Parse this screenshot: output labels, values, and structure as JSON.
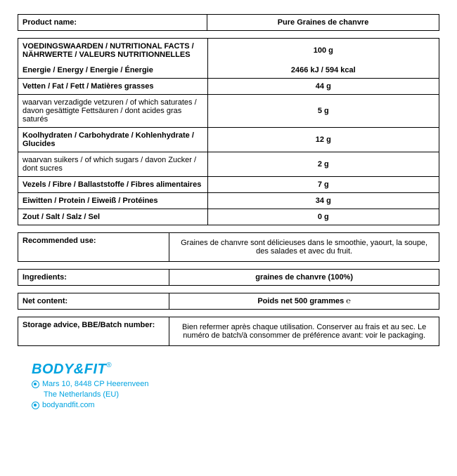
{
  "product": {
    "label": "Product name:",
    "value": "Pure Graines de chanvre"
  },
  "nutrition": {
    "header_label": "VOEDINGSWAARDEN / NUTRITIONAL FACTS / NÄHRWERTE / VALEURS NUTRITIONNELLES",
    "header_value": "100 g",
    "rows": [
      {
        "label": "Energie / Energy / Energie / Énergie",
        "value": "2466 kJ / 594 kcal",
        "bold": true
      },
      {
        "label": "Vetten / Fat / Fett / Matières grasses",
        "value": "44 g",
        "bold": true
      },
      {
        "label": "waarvan verzadigde vetzuren / of which saturates / davon gesättigte Fettsäuren / dont acides gras saturés",
        "value": "5 g",
        "bold": false
      },
      {
        "label": "Koolhydraten / Carbohydrate / Kohlenhydrate / Glucides",
        "value": "12 g",
        "bold": true
      },
      {
        "label": "waarvan suikers / of which sugars / davon Zucker / dont sucres",
        "value": "2 g",
        "bold": false
      },
      {
        "label": "Vezels / Fibre / Ballaststoffe / Fibres alimentaires",
        "value": "7 g",
        "bold": true
      },
      {
        "label": "Eiwitten / Protein / Eiweiß / Protéines",
        "value": "34 g",
        "bold": true
      },
      {
        "label": "Zout / Salt / Salz / Sel",
        "value": "0 g",
        "bold": true
      }
    ]
  },
  "recommended": {
    "label": "Recommended use:",
    "value": "Graines de chanvre sont délicieuses dans le smoothie, yaourt, la soupe, des salades et avec du fruit."
  },
  "ingredients": {
    "label": "Ingredients:",
    "value": "graines de chanvre (100%)"
  },
  "netcontent": {
    "label": "Net content:",
    "value": "Poids net 500 grammes ℮"
  },
  "storage": {
    "label": "Storage advice, BBE/Batch number:",
    "value": "Bien refermer après chaque utilisation. Conserver au frais et au sec. Le numéro de batch/à consommer de préférence avant: voir le packaging."
  },
  "footer": {
    "brand": "BODY&FIT",
    "reg": "®",
    "address1": "Mars 10, 8448 CP  Heerenveen",
    "address2": "The Netherlands (EU)",
    "website": "bodyandfit.com"
  },
  "colors": {
    "brand": "#00a3e0",
    "border": "#000000",
    "text": "#000000",
    "background": "#ffffff"
  }
}
